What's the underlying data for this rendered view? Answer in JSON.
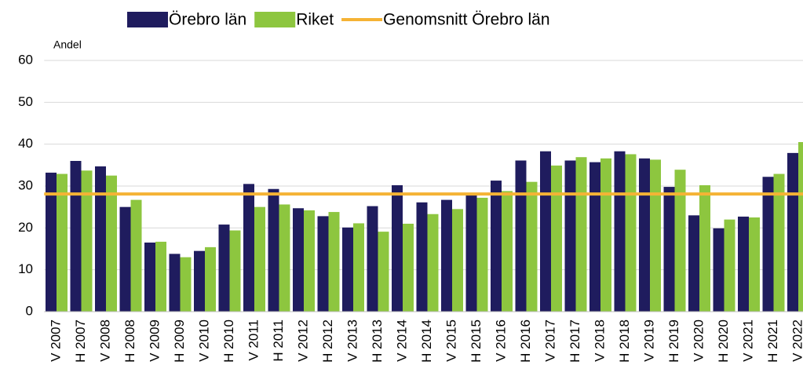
{
  "chart_data": {
    "type": "bar",
    "y_axis_label": "Andel",
    "categories": [
      "V 2007",
      "H 2007",
      "V 2008",
      "H 2008",
      "V 2009",
      "H 2009",
      "V 2010",
      "H 2010",
      "V 2011",
      "H 2011",
      "V 2012",
      "H 2012",
      "V 2013",
      "H 2013",
      "V 2014",
      "H 2014",
      "V 2015",
      "H 2015",
      "V 2016",
      "H 2016",
      "V 2017",
      "H 2017",
      "V 2018",
      "H 2018",
      "V 2019",
      "H 2019",
      "V 2020",
      "H 2020",
      "V 2021",
      "H 2021",
      "V 2022"
    ],
    "series": [
      {
        "name": "Örebro län",
        "color": "#1f1c5e",
        "values": [
          33.2,
          36,
          34.7,
          25,
          16.5,
          13.8,
          14.5,
          20.8,
          30.5,
          29.3,
          24.7,
          22.8,
          20.1,
          25.2,
          30.2,
          26.1,
          26.7,
          28.1,
          31.3,
          36.1,
          38.3,
          36.1,
          35.7,
          38.3,
          36.6,
          29.8,
          23,
          19.9,
          22.7,
          32.2,
          37.9
        ]
      },
      {
        "name": "Riket",
        "color": "#8dc63f",
        "values": [
          32.9,
          33.7,
          32.5,
          26.7,
          16.7,
          13,
          15.4,
          19.4,
          25,
          25.6,
          24.2,
          23.8,
          21.1,
          19.1,
          21,
          23.3,
          24.5,
          27.2,
          28.8,
          31,
          34.9,
          36.9,
          36.6,
          37.6,
          36.3,
          33.9,
          30.2,
          22,
          22.5,
          32.9,
          40.5
        ]
      }
    ],
    "reference_line": {
      "name": "Genomsnitt Örebro län",
      "color": "#f5b335",
      "value": 28.1
    },
    "ylim": [
      0,
      60
    ],
    "yticks": [
      0,
      10,
      20,
      30,
      40,
      50,
      60
    ],
    "grid": true
  }
}
